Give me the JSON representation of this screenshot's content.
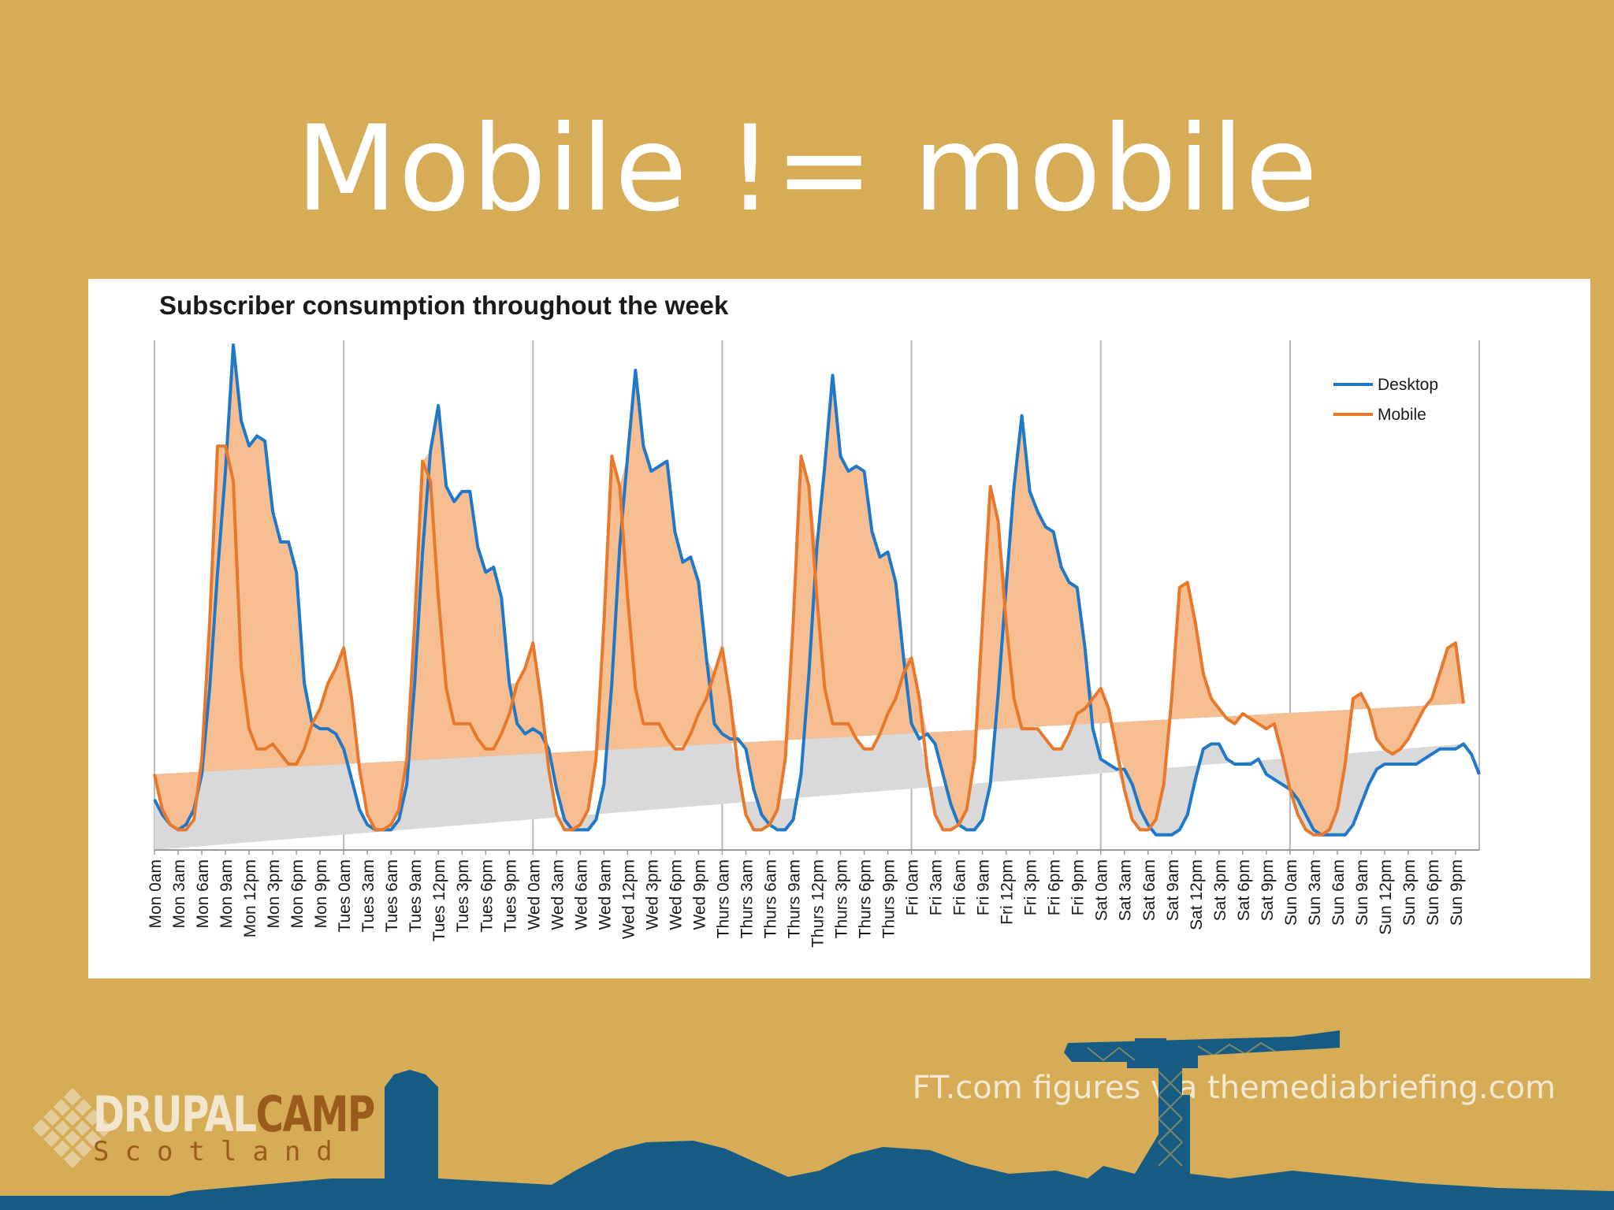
{
  "slide": {
    "title": "Mobile != mobile",
    "credit": "FT.com figures via themediabriefing.com",
    "logo": {
      "line1a": "DRUPAL",
      "line1b": "CAMP",
      "line2": "Scotland"
    },
    "colors": {
      "background": "#d6ac56",
      "skyline": "#155b84",
      "logo_accent": "#9b5b1c"
    }
  },
  "chart_data": {
    "type": "area",
    "title": "Subscriber consumption throughout the week",
    "xlabel": "",
    "ylabel": "",
    "ylim": [
      0,
      100
    ],
    "grid": "vertical lines at each day boundary",
    "legend_position": "top-right",
    "x_tick_labels": [
      "Mon 0am",
      "Mon 3am",
      "Mon 6am",
      "Mon 9am",
      "Mon 12pm",
      "Mon 3pm",
      "Mon 6pm",
      "Mon 9pm",
      "Tues 0am",
      "Tues 3am",
      "Tues 6am",
      "Tues 9am",
      "Tues 12pm",
      "Tues 3pm",
      "Tues 6pm",
      "Tues 9pm",
      "Wed 0am",
      "Wed 3am",
      "Wed 6am",
      "Wed 9am",
      "Wed 12pm",
      "Wed 3pm",
      "Wed 6pm",
      "Wed 9pm",
      "Thurs 0am",
      "Thurs 3am",
      "Thurs 6am",
      "Thurs 9am",
      "Thurs 12pm",
      "Thurs 3pm",
      "Thurs 6pm",
      "Thurs 9pm",
      "Fri 0am",
      "Fri 3am",
      "Fri 6am",
      "Fri 9am",
      "Fri 12pm",
      "Fri 3pm",
      "Fri 6pm",
      "Fri 9pm",
      "Sat 0am",
      "Sat 3am",
      "Sat 6am",
      "Sat 9am",
      "Sat 12pm",
      "Sat 3pm",
      "Sat 6pm",
      "Sat 9pm",
      "Sun 0am",
      "Sun 3am",
      "Sun 6am",
      "Sun 9am",
      "Sun 12pm",
      "Sun 3pm",
      "Sun 6pm",
      "Sun 9pm"
    ],
    "hours_per_point": 1,
    "series": [
      {
        "name": "Desktop",
        "color": "#1f78c8",
        "values": [
          10,
          7,
          5,
          4,
          5,
          8,
          15,
          32,
          55,
          75,
          100,
          85,
          80,
          82,
          81,
          67,
          61,
          61,
          55,
          33,
          25,
          24,
          24,
          23,
          20,
          14,
          8,
          5,
          4,
          4,
          4,
          6,
          13,
          33,
          59,
          79,
          88,
          72,
          69,
          71,
          71,
          60,
          55,
          56,
          50,
          33,
          25,
          23,
          24,
          23,
          20,
          12,
          6,
          4,
          4,
          4,
          6,
          13,
          33,
          60,
          78,
          95,
          80,
          75,
          76,
          77,
          63,
          57,
          58,
          53,
          38,
          25,
          23,
          22,
          22,
          20,
          12,
          7,
          5,
          4,
          4,
          6,
          15,
          35,
          60,
          76,
          94,
          78,
          75,
          76,
          75,
          63,
          58,
          59,
          53,
          38,
          25,
          22,
          23,
          21,
          15,
          9,
          5,
          4,
          4,
          6,
          13,
          31,
          52,
          72,
          86,
          71,
          67,
          64,
          63,
          56,
          53,
          52,
          40,
          24,
          18,
          17,
          16,
          16,
          13,
          8,
          5,
          3,
          3,
          3,
          4,
          7,
          14,
          20,
          21,
          21,
          18,
          17,
          17,
          17,
          18,
          15,
          14,
          13,
          12,
          10,
          7,
          4,
          3,
          3,
          3,
          3,
          5,
          9,
          13,
          16,
          17,
          17,
          17,
          17,
          17,
          18,
          19,
          20,
          20,
          20,
          21,
          19,
          15
        ]
      },
      {
        "name": "Mobile",
        "color": "#e8792c",
        "values": [
          15,
          8,
          5,
          4,
          4,
          6,
          18,
          45,
          80,
          80,
          73,
          36,
          24,
          20,
          20,
          21,
          19,
          17,
          17,
          20,
          25,
          28,
          33,
          36,
          40,
          30,
          16,
          7,
          4,
          4,
          5,
          8,
          18,
          45,
          77,
          73,
          50,
          32,
          25,
          25,
          25,
          22,
          20,
          20,
          23,
          27,
          33,
          36,
          41,
          30,
          16,
          7,
          4,
          4,
          5,
          8,
          18,
          45,
          78,
          72,
          50,
          32,
          25,
          25,
          25,
          22,
          20,
          20,
          23,
          27,
          30,
          35,
          40,
          30,
          16,
          7,
          4,
          4,
          5,
          8,
          18,
          45,
          78,
          72,
          50,
          32,
          25,
          25,
          25,
          22,
          20,
          20,
          23,
          27,
          30,
          35,
          38,
          30,
          16,
          7,
          4,
          4,
          5,
          8,
          18,
          45,
          72,
          65,
          45,
          30,
          24,
          24,
          24,
          22,
          20,
          20,
          23,
          27,
          28,
          30,
          32,
          28,
          20,
          12,
          6,
          4,
          4,
          6,
          13,
          30,
          52,
          53,
          45,
          35,
          30,
          28,
          26,
          25,
          27,
          26,
          25,
          24,
          25,
          19,
          12,
          7,
          4,
          3,
          3,
          4,
          8,
          17,
          30,
          31,
          28,
          22,
          20,
          19,
          20,
          22,
          25,
          28,
          30,
          35,
          40,
          41,
          29
        ]
      }
    ]
  }
}
